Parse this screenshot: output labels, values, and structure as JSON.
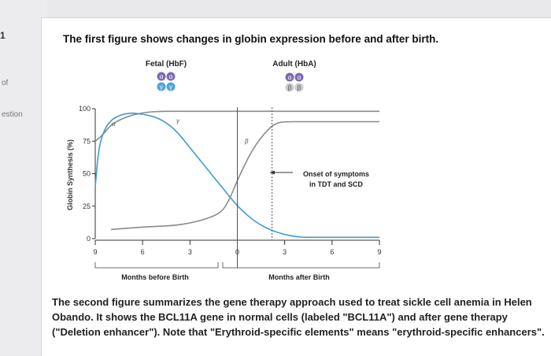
{
  "sidebar": {
    "number": "1",
    "items": [
      "of",
      "estion"
    ]
  },
  "intro_text": "The first figure shows changes in globin expression before and after birth.",
  "outro_text": "The second figure summarizes the gene therapy approach used to treat sickle cell anemia in Helen Obando. It shows the BCL11A gene in normal cells (labeled \"BCL11A\") and after gene therapy (\"Deletion enhancer\"). Note that \"Erythroid-specific elements\" means \"erythroid-specific enhancers\".",
  "chart_data": {
    "type": "line",
    "ylabel": "Globin Synthesis (%)",
    "ylim": [
      0,
      100
    ],
    "yticks": [
      "0",
      "25",
      "50",
      "75",
      "100"
    ],
    "xticks": [
      "9",
      "6",
      "3",
      "0",
      "3",
      "6",
      "9"
    ],
    "xlim": [
      -9,
      9
    ],
    "xlabel_before": "Months before Birth",
    "xlabel_after": "Months after Birth",
    "birth_x": 0,
    "onset_x": 2.2,
    "fetal_label": "Fetal (HbF)",
    "adult_label": "Adult (HbA)",
    "fetal_chains": {
      "top": [
        "α",
        "α"
      ],
      "bottom": [
        "γ",
        "γ"
      ]
    },
    "adult_chains": {
      "top": [
        "α",
        "α"
      ],
      "bottom": [
        "β",
        "β"
      ]
    },
    "annotation": {
      "line1": "Onset of symptoms",
      "line2": "in TDT and SCD"
    },
    "colors": {
      "alpha": "#8a8a8a",
      "gamma": "#3f9ad0",
      "beta": "#8a8a8a",
      "fetal_circles": "#7d69b3",
      "adult_circles": "#7d69b3"
    },
    "series": [
      {
        "name": "α",
        "x": [
          -9,
          -8.5,
          -8,
          -7,
          -6,
          -5,
          -4,
          -3,
          -2,
          -1,
          0,
          1,
          2,
          3,
          4,
          5,
          6,
          7,
          8,
          9
        ],
        "y": [
          75,
          80,
          88,
          94,
          97,
          98,
          98,
          98,
          98,
          98,
          98,
          98,
          98,
          98,
          98,
          98,
          98,
          98,
          98,
          98
        ]
      },
      {
        "name": "γ",
        "x": [
          -9,
          -8.8,
          -8.5,
          -8,
          -7,
          -6,
          -5,
          -4,
          -3,
          -2,
          -1,
          0,
          1,
          2,
          3,
          4,
          5,
          6,
          7,
          8,
          9
        ],
        "y": [
          40,
          68,
          82,
          92,
          97,
          96,
          93,
          85,
          70,
          55,
          40,
          25,
          14,
          7,
          3,
          1,
          1,
          1,
          1,
          1,
          1
        ]
      },
      {
        "name": "β",
        "x": [
          -8,
          -6,
          -4,
          -3,
          -2,
          -1,
          -0.5,
          0,
          1,
          2,
          2.5,
          3,
          4,
          5,
          6,
          7,
          8,
          9
        ],
        "y": [
          7,
          9,
          10,
          12,
          15,
          20,
          30,
          45,
          70,
          85,
          89,
          90,
          90,
          90,
          90,
          90,
          90,
          90
        ]
      }
    ]
  }
}
